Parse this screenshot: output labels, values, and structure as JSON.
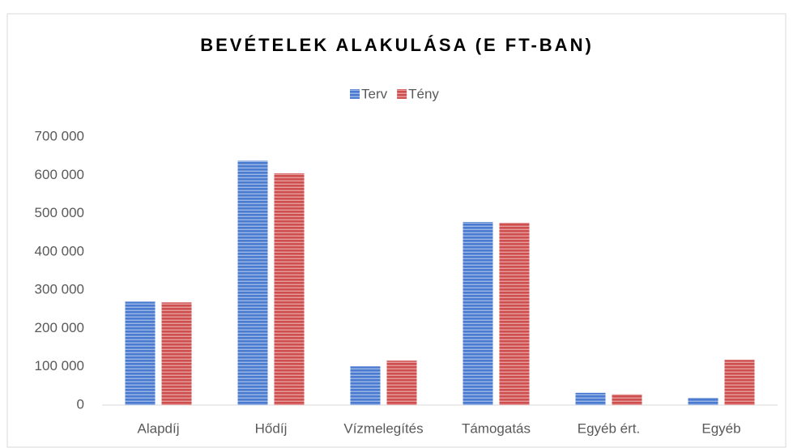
{
  "chart_data": {
    "type": "bar",
    "title": "BEVÉTELEK ALAKULÁSA (E FT-BAN)",
    "categories": [
      "Alapdíj",
      "Hődíj",
      "Vízmelegítés",
      "Támogatás",
      "Egyéb ért.",
      "Egyéb"
    ],
    "series": [
      {
        "name": "Terv",
        "color": "#4a7bd0",
        "values": [
          270000,
          638000,
          101000,
          478000,
          32000,
          19000
        ]
      },
      {
        "name": "Tény",
        "color": "#cf4e4e",
        "values": [
          268000,
          605000,
          116000,
          476000,
          28000,
          118000
        ]
      }
    ],
    "ylim": [
      0,
      700000
    ],
    "yticks": [
      0,
      {
        "value": 100000,
        "label": "100 000"
      },
      {
        "value": 200000,
        "label": "200 000"
      },
      {
        "value": 300000,
        "label": "300 000"
      },
      {
        "value": 400000,
        "label": "400 000"
      },
      {
        "value": 500000,
        "label": "500 000"
      },
      {
        "value": 600000,
        "label": "600 000"
      },
      {
        "value": 700000,
        "label": "700 000"
      }
    ],
    "legend": "top",
    "grid": false
  }
}
